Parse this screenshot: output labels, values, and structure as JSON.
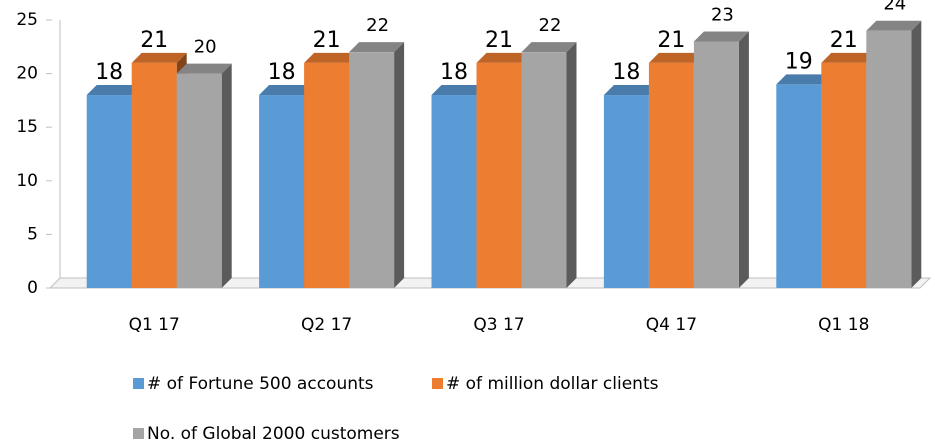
{
  "chart_data": {
    "type": "bar",
    "categories": [
      "Q1 17",
      "Q2 17",
      "Q3 17",
      "Q4 17",
      "Q1 18"
    ],
    "series": [
      {
        "name": "# of Fortune 500 accounts",
        "color": "#5b9bd5",
        "values": [
          18,
          18,
          18,
          18,
          19
        ]
      },
      {
        "name": "# of million dollar clients",
        "color": "#ed7d31",
        "values": [
          21,
          21,
          21,
          21,
          21
        ]
      },
      {
        "name": "No. of Global 2000 customers",
        "color": "#a5a5a5",
        "values": [
          20,
          22,
          22,
          23,
          24
        ]
      }
    ],
    "ylim": [
      0,
      25
    ],
    "yticks": [
      0,
      5,
      10,
      15,
      20,
      25
    ],
    "grid": false
  }
}
